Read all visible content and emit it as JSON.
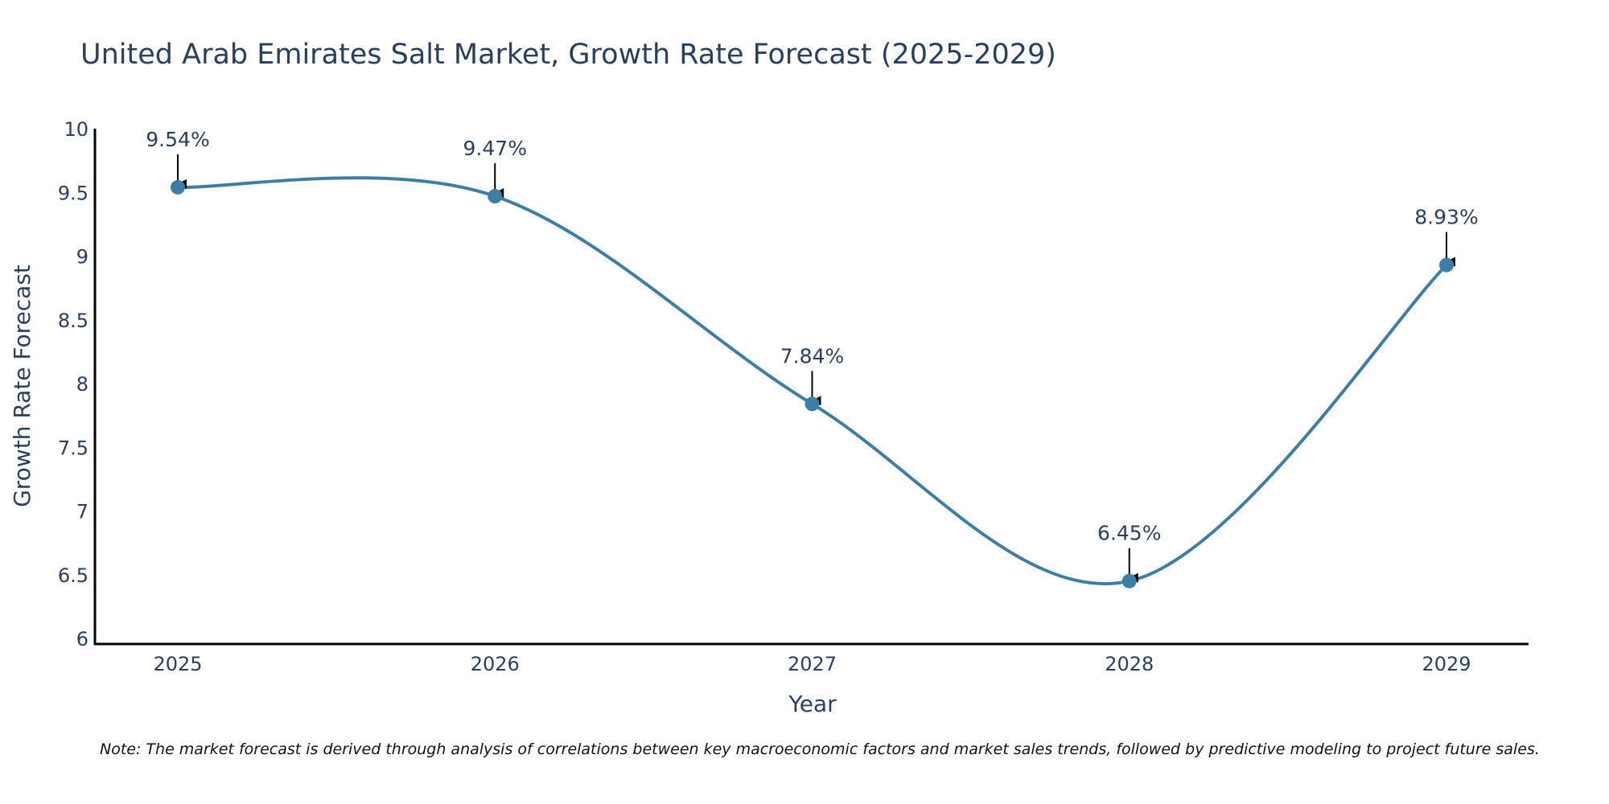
{
  "chart_data": {
    "type": "line",
    "title": "United Arab Emirates Salt Market, Growth Rate Forecast (2025-2029)",
    "xlabel": "Year",
    "ylabel": "Growth Rate Forecast",
    "categories": [
      "2025",
      "2026",
      "2027",
      "2028",
      "2029"
    ],
    "series": [
      {
        "name": "Growth Rate Forecast",
        "values": [
          9.54,
          9.47,
          7.84,
          6.45,
          8.93
        ],
        "labels": [
          "9.54%",
          "9.47%",
          "7.84%",
          "6.45%",
          "8.93%"
        ]
      }
    ],
    "ylim": [
      5.95,
      10.0
    ],
    "yticks": [
      6,
      6.5,
      7,
      7.5,
      8,
      8.5,
      9,
      9.5,
      10
    ],
    "ytick_labels": [
      "6",
      "6.5",
      "7",
      "7.5",
      "8",
      "8.5",
      "9",
      "9.5",
      "10"
    ],
    "line_color": "#3d7ea6",
    "marker_color": "#3d7ea6",
    "grid": false,
    "note": "Note: The market forecast is derived through analysis of correlations between key macroeconomic factors and market sales trends, followed by predictive modeling to project future sales."
  }
}
